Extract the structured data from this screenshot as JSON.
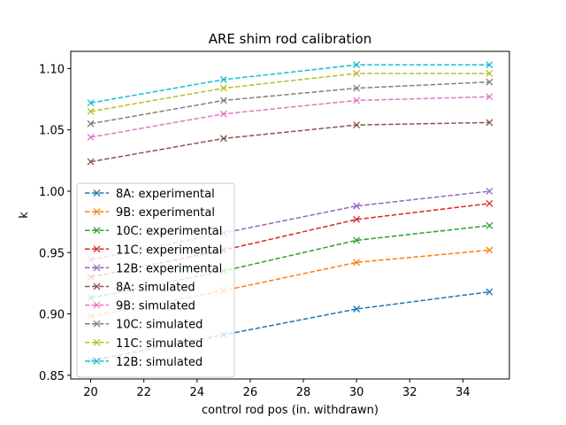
{
  "chart_data": {
    "type": "line",
    "title": "ARE shim rod calibration",
    "xlabel": "control rod pos (in. withdrawn)",
    "ylabel": "k",
    "xlim": [
      19.25,
      35.75
    ],
    "ylim": [
      0.847,
      1.114
    ],
    "xticks": [
      20,
      22,
      24,
      26,
      28,
      30,
      32,
      34
    ],
    "yticks": [
      0.85,
      0.9,
      0.95,
      1.0,
      1.05,
      1.1
    ],
    "ytick_labels": [
      "0.85",
      "0.90",
      "0.95",
      "1.00",
      "1.05",
      "1.10"
    ],
    "grid": false,
    "legend_position": "lower-left",
    "x": [
      20,
      25,
      30,
      35
    ],
    "series": [
      {
        "name": "8A: experimental",
        "color": "#1f77b4",
        "marker": "x",
        "linestyle": "dashed",
        "values": [
          0.862,
          0.883,
          0.904,
          0.918
        ]
      },
      {
        "name": "9B: experimental",
        "color": "#ff7f0e",
        "marker": "x",
        "linestyle": "dashed",
        "values": [
          0.898,
          0.919,
          0.942,
          0.952
        ]
      },
      {
        "name": "10C: experimental",
        "color": "#2ca02c",
        "marker": "x",
        "linestyle": "dashed",
        "values": [
          0.913,
          0.935,
          0.96,
          0.972
        ]
      },
      {
        "name": "11C: experimental",
        "color": "#d62728",
        "marker": "x",
        "linestyle": "dashed",
        "values": [
          0.93,
          0.952,
          0.977,
          0.99
        ]
      },
      {
        "name": "12B: experimental",
        "color": "#9467bd",
        "marker": "x",
        "linestyle": "dashed",
        "values": [
          0.944,
          0.966,
          0.988,
          1.0
        ]
      },
      {
        "name": "8A: simulated",
        "color": "#8c564b",
        "marker": "x",
        "linestyle": "dashed",
        "values": [
          1.024,
          1.043,
          1.054,
          1.056
        ]
      },
      {
        "name": "9B: simulated",
        "color": "#e377c2",
        "marker": "x",
        "linestyle": "dashed",
        "values": [
          1.044,
          1.063,
          1.074,
          1.077
        ]
      },
      {
        "name": "10C: simulated",
        "color": "#7f7f7f",
        "marker": "x",
        "linestyle": "dashed",
        "values": [
          1.055,
          1.074,
          1.084,
          1.089
        ]
      },
      {
        "name": "11C: simulated",
        "color": "#bcbd22",
        "marker": "x",
        "linestyle": "dashed",
        "values": [
          1.065,
          1.084,
          1.096,
          1.096
        ]
      },
      {
        "name": "12B: simulated",
        "color": "#17becf",
        "marker": "x",
        "linestyle": "dashed",
        "values": [
          1.072,
          1.091,
          1.103,
          1.103
        ]
      }
    ]
  }
}
